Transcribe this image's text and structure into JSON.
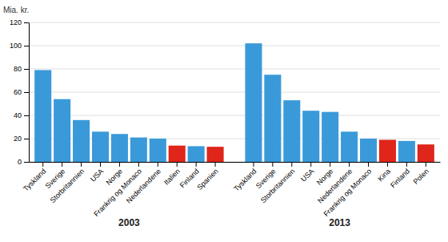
{
  "chart_data": {
    "type": "bar",
    "ylabel": "Mia. kr.",
    "categories": [
      "Tyskland",
      "Sverige",
      "Storbritannien",
      "USA",
      "Norge",
      "Frankrig og Monaco",
      "Nederlandene",
      "Italien",
      "Finland",
      "Spanien",
      "Tyskland",
      "Sverige",
      "Storbritannien",
      "USA",
      "Norge",
      "Nederlandene",
      "Frankrig og Monaco",
      "Kina",
      "Finland",
      "Polen"
    ],
    "values": [
      79,
      54,
      36,
      26,
      24,
      21,
      20,
      14,
      13.5,
      13,
      102,
      75,
      53,
      44,
      43,
      26,
      20,
      19,
      18,
      15
    ],
    "colors": [
      "#3a9ad9",
      "#3a9ad9",
      "#3a9ad9",
      "#3a9ad9",
      "#3a9ad9",
      "#3a9ad9",
      "#3a9ad9",
      "#e0251a",
      "#3a9ad9",
      "#e0251a",
      "#3a9ad9",
      "#3a9ad9",
      "#3a9ad9",
      "#3a9ad9",
      "#3a9ad9",
      "#3a9ad9",
      "#3a9ad9",
      "#e0251a",
      "#3a9ad9",
      "#e0251a"
    ],
    "annotations": [
      "2003",
      "2013"
    ],
    "ylim": [
      0,
      120
    ],
    "yticks": [
      0,
      20,
      40,
      60,
      80,
      100,
      120
    ],
    "grid": true
  }
}
